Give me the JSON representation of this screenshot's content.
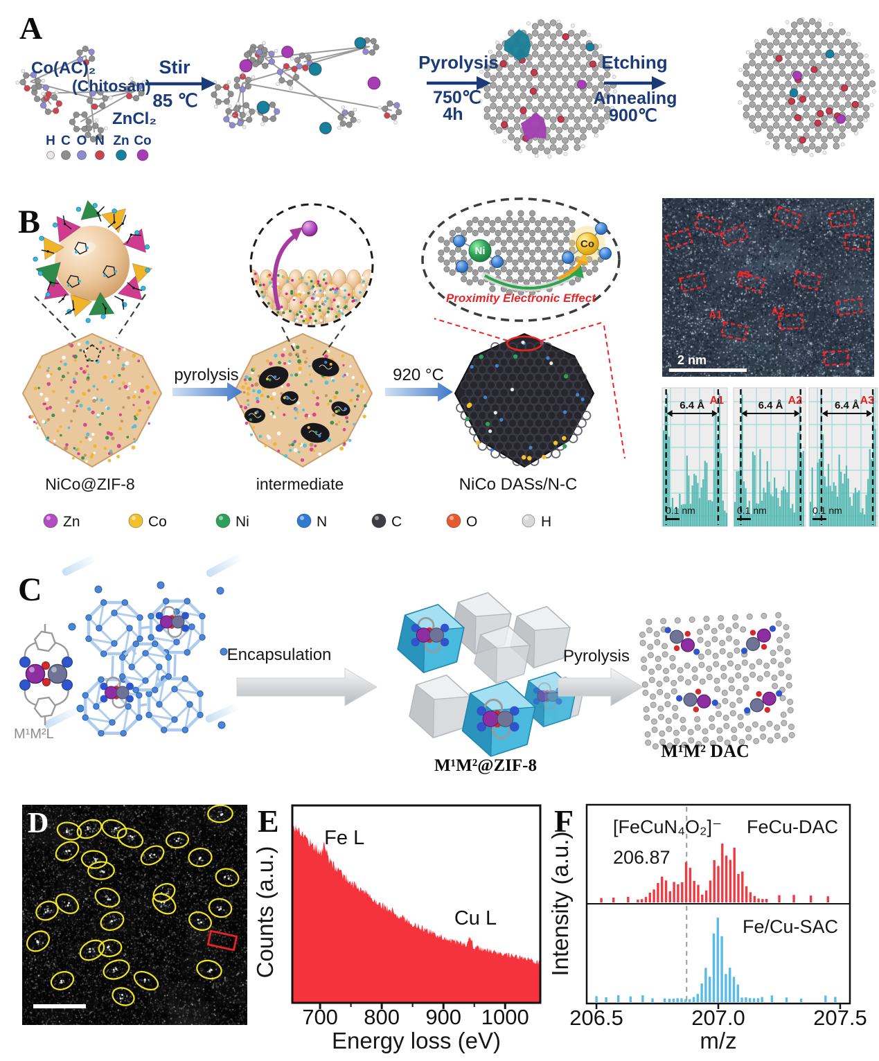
{
  "figure": {
    "labels": {
      "a": "A",
      "b": "B",
      "c": "C",
      "d": "D",
      "e": "E",
      "f": "F"
    }
  },
  "panel_a": {
    "reactants": {
      "cobalt": "Co(AC)₂",
      "chitosan": "(Chitosan)",
      "zinc": "ZnCl₂"
    },
    "legend": [
      {
        "symbol": "H",
        "color": "#e8e8e8"
      },
      {
        "symbol": "C",
        "color": "#8f8f8f"
      },
      {
        "symbol": "O",
        "color": "#8f8ad2"
      },
      {
        "symbol": "N",
        "color": "#cd4550"
      },
      {
        "symbol": "Zn",
        "color": "#17809c"
      },
      {
        "symbol": "Co",
        "color": "#a83cb6"
      }
    ],
    "steps": {
      "s1a": "Stir",
      "s1b": "85 ℃",
      "s2a": "Pyrolysis",
      "s2b": "750℃",
      "s2c": "4h",
      "s3a": "Etching",
      "s3b": "Annealing",
      "s3c": "900℃"
    },
    "text_color": "#1a3a78"
  },
  "panel_b": {
    "stages": {
      "s1": "NiCo@ZIF-8",
      "s2": "intermediate",
      "s3": "NiCo DASs/N-C"
    },
    "steps": {
      "a1": "pyrolysis",
      "a2": "920 °C"
    },
    "inset": {
      "ni": "Ni",
      "co": "Co",
      "caption": "Proximity Electronic Effect"
    },
    "legend": [
      {
        "symbol": "Zn",
        "color": "#b44cc2"
      },
      {
        "symbol": "Co",
        "color": "#f2c12e"
      },
      {
        "symbol": "Ni",
        "color": "#2fa05a"
      },
      {
        "symbol": "N",
        "color": "#2f7bd0"
      },
      {
        "symbol": "C",
        "color": "#3d3d44"
      },
      {
        "symbol": "O",
        "color": "#e85a2e"
      },
      {
        "symbol": "H",
        "color": "#d8d8d8"
      }
    ],
    "tem": {
      "scale_label": "2 nm",
      "labels": {
        "a1": "A1",
        "a2": "A2",
        "a3": "A3"
      }
    }
  },
  "panel_c": {
    "molecule": "M¹M²L",
    "encapsulation": "Encapsulation",
    "zif": "M¹M²@ZIF-8",
    "pyrolysis": "Pyrolysis",
    "dac": "M¹M² DAC"
  },
  "panel_d": {
    "site_count": 28
  },
  "chart_data": [
    {
      "id": "eels_spectrum",
      "type": "area",
      "xlabel": "Energy loss (eV)",
      "ylabel": "Counts (a.u.)",
      "xlim": [
        655,
        1057
      ],
      "x_ticks": [
        700,
        800,
        900,
        1000
      ],
      "x_minor_ticks": [
        750,
        850,
        950
      ],
      "color": "#f5333d",
      "trend": [
        [
          655,
          0.95
        ],
        [
          700,
          0.8
        ],
        [
          750,
          0.64
        ],
        [
          800,
          0.52
        ],
        [
          850,
          0.42
        ],
        [
          900,
          0.345
        ],
        [
          950,
          0.295
        ],
        [
          1000,
          0.255
        ],
        [
          1057,
          0.215
        ]
      ],
      "peaks": [
        {
          "center": 708,
          "amp": 0.06,
          "sigma": 3,
          "label": "Fe L"
        },
        {
          "center": 943,
          "amp": 0.05,
          "sigma": 2.5,
          "label": "Cu L"
        }
      ]
    },
    {
      "id": "mass_spectrum",
      "type": "bar",
      "xlabel": "m/z",
      "ylabel": "Intensity (a.u.)",
      "xlim": [
        206.46,
        207.54
      ],
      "x_ticks": [
        206.5,
        207.0,
        207.5
      ],
      "x_tick_labels": [
        "206.5",
        "207.0",
        "207.5"
      ],
      "dashed_line_mz": 206.87,
      "series": [
        {
          "name": "FeCu-DAC",
          "color": "#ee3a42",
          "annotation": "[FeCuN₄O₂]⁻",
          "peak_label": "206.87",
          "peak_width": 0.038,
          "peaks": [
            {
              "mz": 206.76,
              "h": 0.4
            },
            {
              "mz": 206.87,
              "h": 0.62
            },
            {
              "mz": 207.02,
              "h": 1.0
            },
            {
              "mz": 207.08,
              "h": 0.5
            }
          ],
          "cluster": [
            206.67,
            207.2
          ],
          "noise_mz": [
            206.52,
            206.57,
            206.63,
            207.25,
            207.31,
            207.38,
            207.45
          ]
        },
        {
          "name": "Fe/Cu-SAC",
          "color": "#58bbe8",
          "peak_width": 0.02,
          "peaks": [
            {
              "mz": 206.95,
              "h": 0.4
            },
            {
              "mz": 207.0,
              "h": 1.0
            },
            {
              "mz": 207.06,
              "h": 0.5
            }
          ],
          "cluster": [
            206.8,
            207.18
          ],
          "noise_mz": [
            206.5,
            206.54,
            206.59,
            206.64,
            206.69,
            206.73,
            206.78,
            207.22,
            207.28,
            207.34,
            207.44,
            207.48
          ]
        }
      ]
    },
    {
      "id": "intensity_line_profiles",
      "type": "area",
      "labels": [
        "A1",
        "A2",
        "A3"
      ],
      "width_label": "6.4 Å",
      "scale_label": "0.1 nm",
      "spacing_angstrom": 6.4,
      "color": "#57b9b3"
    }
  ]
}
